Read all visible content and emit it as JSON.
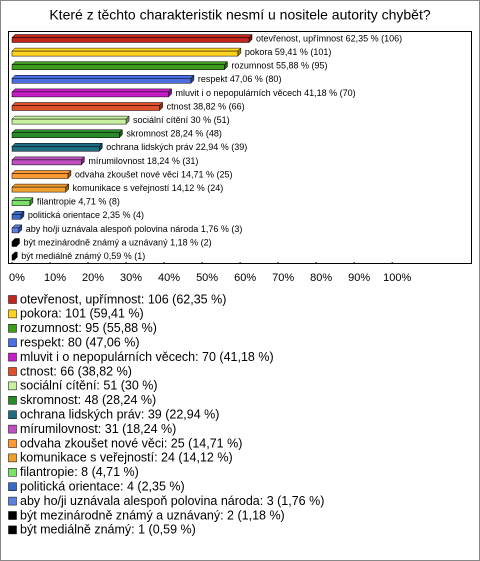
{
  "chart_data": {
    "type": "bar",
    "orientation": "horizontal",
    "title": "Které z těchto charakteristik nesmí u nositele autority chybět?",
    "values": [
      62.35,
      59.41,
      55.88,
      47.06,
      41.18,
      38.82,
      30,
      28.24,
      22.94,
      18.24,
      14.71,
      14.12,
      4.71,
      2.35,
      1.76,
      1.18,
      0.59
    ],
    "value_labels": [
      "otevřenost, upřímnost 62,35 % (106)",
      "pokora 59,41 % (101)",
      "rozumnost 55,88 % (95)",
      "respekt 47,06 % (80)",
      "mluvit i o nepopulárních věcech 41,18 % (70)",
      "ctnost 38,82 % (66)",
      "sociální cítění 30 % (51)",
      "skromnost 28,24 % (48)",
      "ochrana lidských práv 22,94 % (39)",
      "mírumilovnost 18,24 % (31)",
      "odvaha zkoušet nové věci 14,71 % (25)",
      "komunikace s veřejností 14,12 % (24)",
      "filantropie 4,71 % (8)",
      "politická orientace 2,35 % (4)",
      "aby ho/ji uznávala alespoň polovina národa 1,76 % (3)",
      "být mezinárodně známý a uznávaný 1,18 % (2)",
      "být mediálně známý 0,59 % (1)"
    ],
    "colors": [
      "#c0281e",
      "#ffd320",
      "#3f9c1c",
      "#4b6fe0",
      "#c61ec6",
      "#e0502a",
      "#c8f0a0",
      "#2a8a2a",
      "#1f6b80",
      "#c050c0",
      "#ff9933",
      "#f0a030",
      "#7de06a",
      "#3a6ac8",
      "#6080e0",
      "#000000",
      "#000000"
    ],
    "legend": [
      "otevřenost, upřímnost: 106 (62,35 %)",
      "pokora: 101 (59,41 %)",
      "rozumnost: 95 (55,88 %)",
      "respekt: 80 (47,06 %)",
      "mluvit i o nepopulárních věcech: 70 (41,18 %)",
      "ctnost: 66 (38,82 %)",
      "sociální cítění: 51 (30 %)",
      "skromnost: 48 (28,24 %)",
      "ochrana lidských práv: 39 (22,94 %)",
      "mírumilovnost: 31 (18,24 %)",
      "odvaha zkoušet nové věci: 25 (14,71 %)",
      "komunikace s veřejností: 24 (14,12 %)",
      "filantropie: 8 (4,71 %)",
      "politická orientace: 4 (2,35 %)",
      "aby ho/ji uznávala alespoň polovina národa: 3 (1,76 %)",
      "být mezinárodně známý a uznávaný: 2 (1,18 %)",
      "být mediálně známý: 1 (0,59 %)"
    ],
    "xlim": [
      0,
      121
    ],
    "xticks": [
      {
        "value": 0,
        "label": "0%"
      },
      {
        "value": 10,
        "label": "10%"
      },
      {
        "value": 20,
        "label": "20%"
      },
      {
        "value": 30,
        "label": "30%"
      },
      {
        "value": 40,
        "label": "40%"
      },
      {
        "value": 50,
        "label": "50%"
      },
      {
        "value": 60,
        "label": "60%"
      },
      {
        "value": 70,
        "label": "70%"
      },
      {
        "value": 80,
        "label": "80%"
      },
      {
        "value": 90,
        "label": "90%"
      },
      {
        "value": 100,
        "label": "100%"
      }
    ]
  }
}
